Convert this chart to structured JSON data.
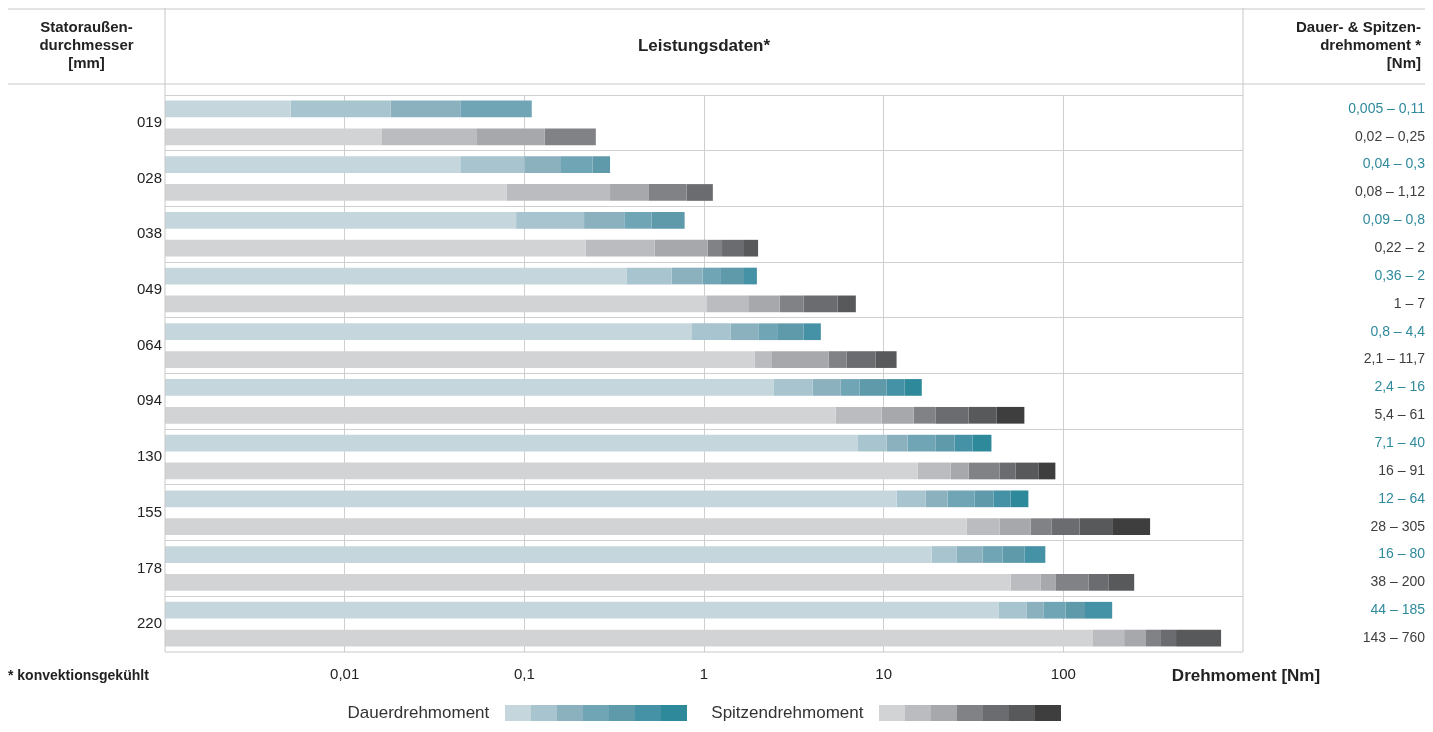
{
  "chart_data": {
    "type": "bar",
    "orientation": "horizontal",
    "stacked": true,
    "title": "Leistungsdaten*",
    "ylabel": "Statoraußen-\ndurchmesser\n[mm]",
    "y2label": "Dauer- & Spitzen-\ndrehmoment *\n[Nm]",
    "xlabel": "Drehmoment [Nm]",
    "categories": [
      "019",
      null,
      "028",
      null,
      "038",
      null,
      "049",
      null,
      "064",
      null,
      "094",
      null,
      "130",
      null,
      "155",
      null,
      "178",
      null,
      "220",
      null
    ],
    "y2_categories": [
      "0,005 – 0,11",
      "0,02 – 0,25",
      "0,04 – 0,3",
      "0,08 – 1,12",
      "0,09 – 0,8",
      "0,22 – 2",
      "0,36 – 2",
      "1 – 7",
      "0,8 – 4,4",
      "2,1 – 11,7",
      "2,4 – 16",
      "5,4 – 61",
      "7,1 – 40",
      "16 – 91",
      "12 – 64",
      "28 – 305",
      "16 – 80",
      "38 – 200",
      "44 – 185",
      "143 – 760"
    ],
    "log": "x",
    "xlim": [
      0.001,
      1000
    ],
    "xticks": [
      {
        "value": 0.01,
        "label": "0,01"
      },
      {
        "value": 0.1,
        "label": "0,1"
      },
      1,
      10,
      100
    ],
    "grid": true,
    "legend": "bottom",
    "series": [
      {
        "name": "Dauerdrehmoment",
        "color": "#c5d7dd",
        "values": [
          0.005,
          null,
          0.044,
          null,
          0.09,
          null,
          0.37,
          null,
          0.85,
          null,
          2.45,
          null,
          7.2,
          null,
          11.8,
          null,
          18.5,
          null,
          43.5,
          null
        ]
      },
      {
        "color": "#a7c4cf",
        "values": [
          0.013,
          null,
          0.056,
          null,
          0.125,
          null,
          0.29,
          null,
          0.56,
          null,
          1.58,
          null,
          3.2,
          null,
          5.3,
          null,
          6.9,
          null,
          18.8,
          null
        ]
      },
      {
        "color": "#8bb1bf",
        "values": [
          0.026,
          null,
          0.06,
          null,
          0.145,
          null,
          0.32,
          null,
          0.61,
          null,
          1.74,
          null,
          3.2,
          null,
          5.6,
          null,
          10.1,
          null,
          15.1,
          null
        ]
      },
      {
        "color": "#70a5b6",
        "values": [
          0.066,
          null,
          0.08,
          null,
          0.15,
          null,
          0.25,
          null,
          0.56,
          null,
          1.59,
          null,
          5.8,
          null,
          9.3,
          null,
          10.3,
          null,
          25.6,
          null
        ]
      },
      {
        "color": "#5f9aab",
        "values": [
          null,
          null,
          0.06,
          null,
          0.27,
          null,
          0.44,
          null,
          1.01,
          null,
          3.04,
          null,
          5.4,
          null,
          8.8,
          null,
          14.9,
          null,
          29,
          null
        ]
      },
      {
        "color": "#4592a6",
        "values": [
          null,
          null,
          null,
          null,
          null,
          null,
          0.3,
          null,
          0.88,
          null,
          2.7,
          null,
          6.4,
          null,
          10,
          null,
          18.7,
          null,
          55,
          null
        ]
      },
      {
        "color": "#2e8a9b",
        "values": [
          null,
          null,
          null,
          null,
          null,
          null,
          null,
          null,
          null,
          null,
          3.2,
          null,
          8.6,
          null,
          13.1,
          null,
          null,
          null,
          null,
          null
        ]
      },
      {
        "name": "Spitzendrehmoment",
        "color": "#d2d3d5",
        "values": [
          null,
          0.016,
          null,
          0.08,
          null,
          0.22,
          null,
          1.03,
          null,
          1.92,
          null,
          5.4,
          null,
          15.5,
          null,
          28.9,
          null,
          50.8,
          null,
          145
        ]
      },
      {
        "color": "#bbbcbf",
        "values": [
          null,
          0.038,
          null,
          0.22,
          null,
          0.31,
          null,
          0.75,
          null,
          0.47,
          null,
          4.35,
          null,
          8.1,
          null,
          15.2,
          null,
          23.7,
          null,
          73
        ]
      },
      {
        "color": "#a7a8ab",
        "values": [
          null,
          0.076,
          null,
          0.19,
          null,
          0.52,
          null,
          0.86,
          null,
          2.56,
          null,
          4.95,
          null,
          6.1,
          null,
          21.5,
          null,
          15.8,
          null,
          68
        ]
      },
      {
        "color": "#818285",
        "values": [
          null,
          0.12,
          null,
          0.31,
          null,
          0.21,
          null,
          0.95,
          null,
          1.28,
          null,
          4.7,
          null,
          14.4,
          null,
          20.2,
          null,
          47.7,
          null,
          60
        ]
      },
      {
        "color": "#6b6c70",
        "values": [
          null,
          null,
          null,
          0.32,
          null,
          0.41,
          null,
          1.96,
          null,
          2.8,
          null,
          10.3,
          null,
          10,
          null,
          37.2,
          null,
          40,
          null,
          78
        ]
      },
      {
        "color": "#58595b",
        "values": [
          null,
          null,
          null,
          null,
          null,
          0.33,
          null,
          1.45,
          null,
          2.77,
          null,
          12.7,
          null,
          18.5,
          null,
          64,
          null,
          70,
          null,
          331
        ]
      },
      {
        "color": "#3e3e3e",
        "values": [
          null,
          null,
          null,
          null,
          null,
          null,
          null,
          null,
          null,
          null,
          null,
          18.3,
          null,
          17.7,
          null,
          117,
          null,
          null,
          null,
          null
        ]
      }
    ],
    "annotations": [
      "* konvektionsgekühlt"
    ]
  }
}
